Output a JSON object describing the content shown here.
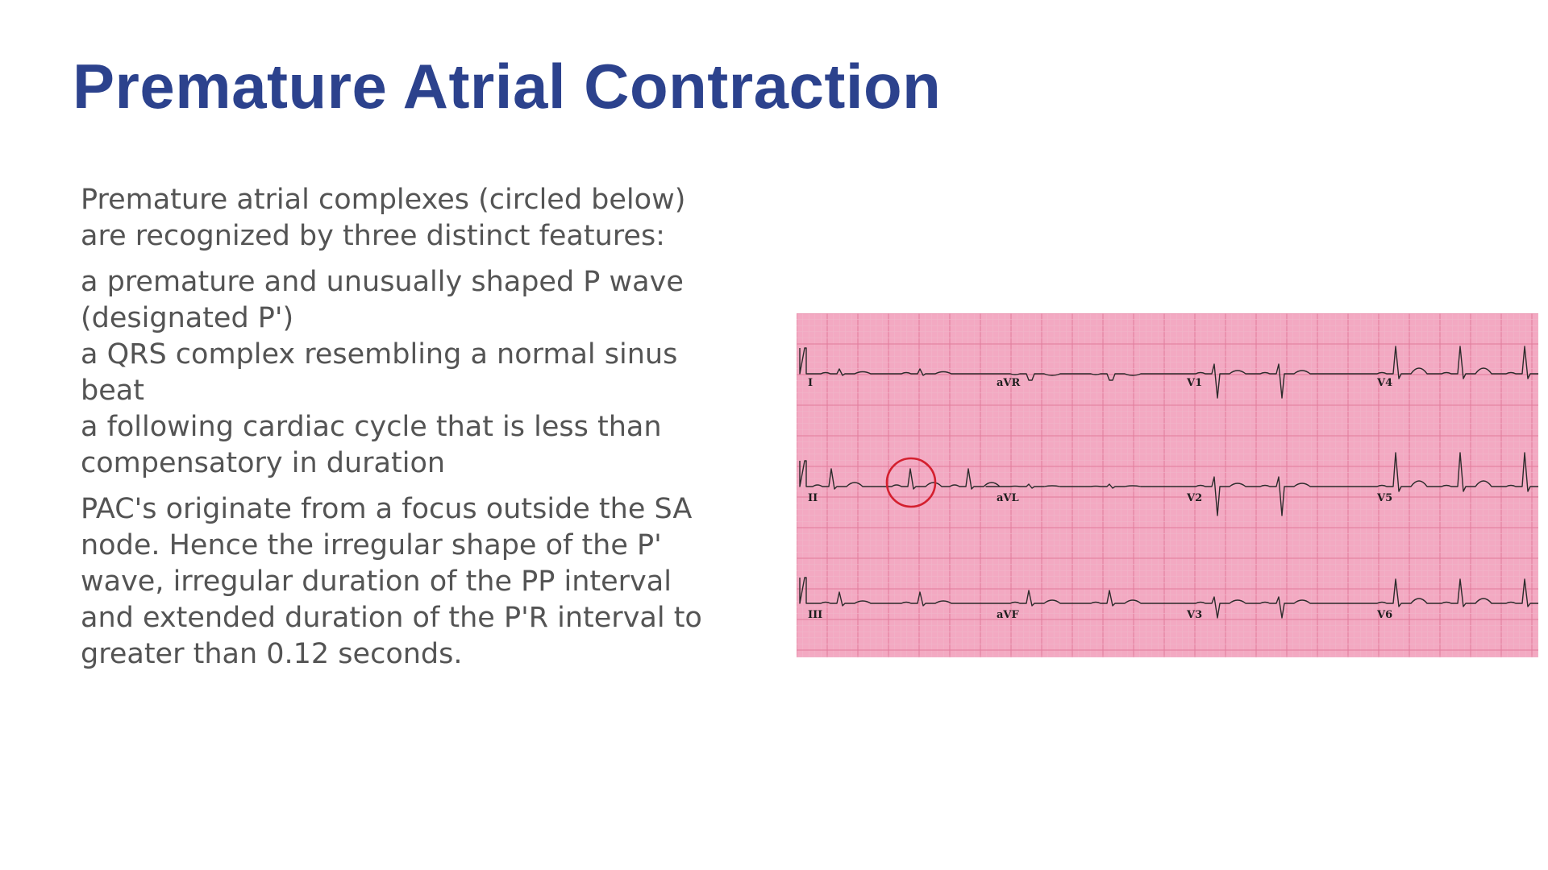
{
  "title": "Premature Atrial Contraction",
  "intro": [
    "Premature atrial complexes (circled below)",
    "are recognized by three distinct features:"
  ],
  "features": [
    [
      "a premature and unusually shaped P wave",
      "(designated P')"
    ],
    [
      "a QRS complex resembling a normal sinus",
      "beat"
    ],
    [
      "a following cardiac cycle that is less than",
      "compensatory in duration"
    ]
  ],
  "explanation": [
    "PAC's originate from a focus outside the SA",
    "node. Hence the irregular shape of the P'",
    "wave, irregular duration of the PP interval",
    "and extended duration of the P'R interval to",
    "greater than 0.12 seconds."
  ],
  "ecg": {
    "leads": {
      "row1": [
        "I",
        "aVR",
        "V1",
        "V4"
      ],
      "row2": [
        "II",
        "aVL",
        "V2",
        "V5"
      ],
      "row3": [
        "III",
        "aVF",
        "V3",
        "V6"
      ]
    },
    "colors": {
      "paper": "#f3a9c2",
      "minor_grid": "#f0b6c9",
      "major_grid": "#e27a9b",
      "trace": "#2b2b2b",
      "circle": "#d4202f"
    },
    "highlight": "circled premature atrial complex in lead II"
  }
}
